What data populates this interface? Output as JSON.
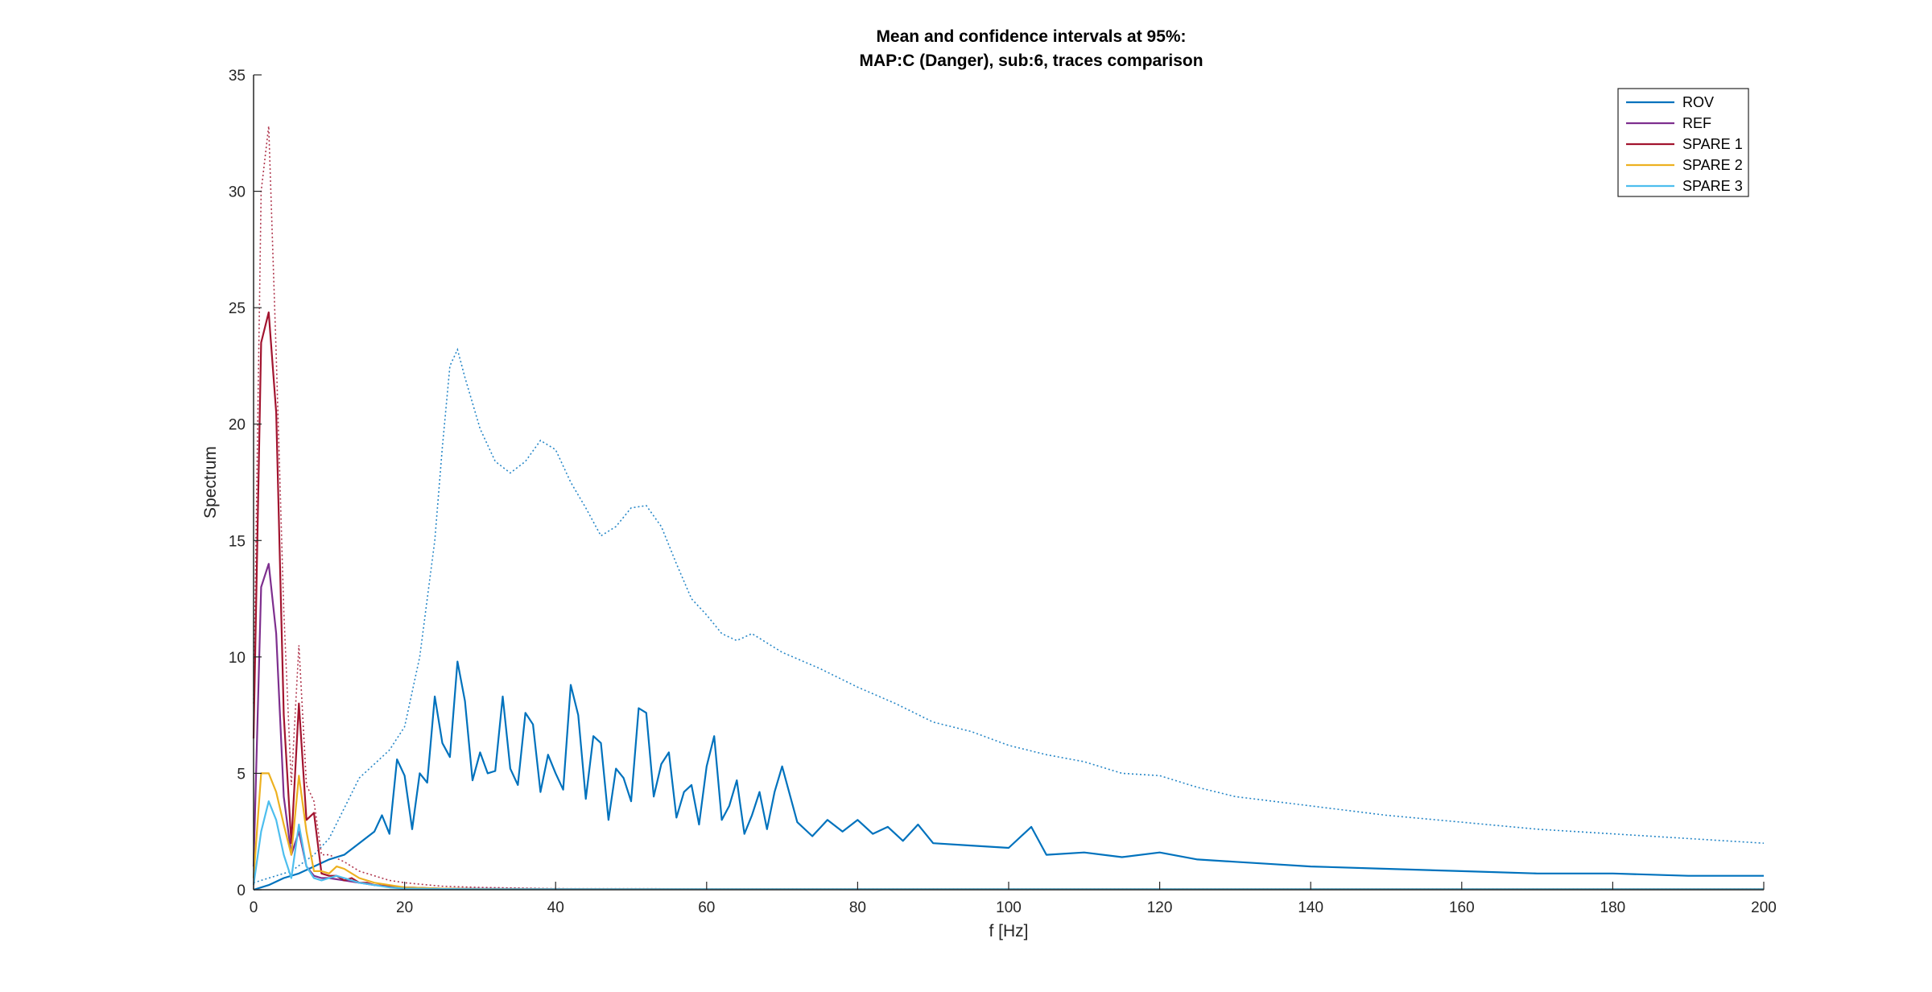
{
  "chart_data": {
    "type": "line",
    "title": [
      "Mean and confidence intervals at 95%:",
      "MAP:C (Danger), sub:6, traces comparison"
    ],
    "xlabel": "f [Hz]",
    "ylabel": "Spectrum",
    "xlim": [
      0,
      200
    ],
    "ylim": [
      0,
      35
    ],
    "xticks": [
      0,
      20,
      40,
      60,
      80,
      100,
      120,
      140,
      160,
      180,
      200
    ],
    "yticks": [
      0,
      5,
      10,
      15,
      20,
      25,
      30,
      35
    ],
    "xtick_labels": [
      "0",
      "20",
      "40",
      "60",
      "80",
      "100",
      "120",
      "140",
      "160",
      "180",
      "200"
    ],
    "ytick_labels": [
      "0",
      "5",
      "10",
      "15",
      "20",
      "25",
      "30",
      "35"
    ],
    "grid": false,
    "legend_position": "top-right",
    "series": [
      {
        "name": "ROV",
        "color": "#0072BD",
        "x": [
          0,
          2,
          4,
          6,
          8,
          10,
          12,
          14,
          16,
          17,
          18,
          19,
          20,
          21,
          22,
          23,
          24,
          25,
          26,
          27,
          28,
          29,
          30,
          31,
          32,
          33,
          34,
          35,
          36,
          37,
          38,
          39,
          40,
          41,
          42,
          43,
          44,
          45,
          46,
          47,
          48,
          49,
          50,
          51,
          52,
          53,
          54,
          55,
          56,
          57,
          58,
          59,
          60,
          61,
          62,
          63,
          64,
          65,
          66,
          67,
          68,
          69,
          70,
          72,
          74,
          76,
          78,
          80,
          82,
          84,
          86,
          88,
          90,
          95,
          100,
          103,
          105,
          110,
          115,
          120,
          125,
          130,
          135,
          140,
          150,
          160,
          170,
          180,
          190,
          200
        ],
        "y": [
          0,
          0.2,
          0.5,
          0.7,
          1.0,
          1.3,
          1.5,
          2.0,
          2.5,
          3.2,
          2.4,
          5.6,
          4.9,
          2.6,
          5.0,
          4.6,
          8.3,
          6.3,
          5.7,
          9.8,
          8.1,
          4.7,
          5.9,
          5.0,
          5.1,
          8.3,
          5.2,
          4.5,
          7.6,
          7.1,
          4.2,
          5.8,
          5.0,
          4.3,
          8.8,
          7.5,
          3.9,
          6.6,
          6.3,
          3.0,
          5.2,
          4.8,
          3.8,
          7.8,
          7.6,
          4.0,
          5.4,
          5.9,
          3.1,
          4.2,
          4.5,
          2.8,
          5.3,
          6.6,
          3.0,
          3.6,
          4.7,
          2.4,
          3.2,
          4.2,
          2.6,
          4.2,
          5.3,
          2.9,
          2.3,
          3.0,
          2.5,
          3.0,
          2.4,
          2.7,
          2.1,
          2.8,
          2.0,
          1.9,
          1.8,
          2.7,
          1.5,
          1.6,
          1.4,
          1.6,
          1.3,
          1.2,
          1.1,
          1.0,
          0.9,
          0.8,
          0.7,
          0.7,
          0.6,
          0.6
        ],
        "ci_upper": {
          "x": [
            0,
            5,
            8,
            10,
            12,
            14,
            16,
            18,
            20,
            22,
            24,
            25,
            26,
            27,
            28,
            30,
            32,
            34,
            36,
            38,
            40,
            42,
            44,
            46,
            48,
            50,
            52,
            54,
            56,
            58,
            60,
            62,
            64,
            66,
            68,
            70,
            75,
            80,
            85,
            90,
            95,
            100,
            105,
            110,
            115,
            120,
            125,
            130,
            140,
            150,
            160,
            170,
            180,
            190,
            200
          ],
          "y": [
            0.3,
            0.8,
            1.5,
            2.2,
            3.5,
            4.8,
            5.4,
            6.0,
            7.0,
            10.0,
            15.0,
            19.0,
            22.5,
            23.2,
            22.0,
            19.8,
            18.4,
            17.9,
            18.4,
            19.3,
            18.9,
            17.5,
            16.4,
            15.2,
            15.6,
            16.4,
            16.5,
            15.6,
            14.0,
            12.5,
            11.8,
            11.0,
            10.7,
            11.0,
            10.6,
            10.2,
            9.5,
            8.7,
            8.0,
            7.2,
            6.8,
            6.2,
            5.8,
            5.5,
            5.0,
            4.9,
            4.4,
            4.0,
            3.6,
            3.2,
            2.9,
            2.6,
            2.4,
            2.2,
            2.0
          ]
        }
      },
      {
        "name": "REF",
        "color": "#7E2F8E",
        "x": [
          0,
          1,
          2,
          3,
          4,
          5,
          6,
          7,
          8,
          9,
          10,
          12,
          14,
          16,
          18,
          20,
          25,
          30,
          40,
          50,
          60,
          80,
          100,
          150,
          200
        ],
        "y": [
          1.0,
          13.0,
          14.0,
          11.0,
          4.0,
          1.5,
          2.5,
          1.0,
          0.6,
          0.5,
          0.5,
          0.4,
          0.3,
          0.2,
          0.15,
          0.1,
          0.05,
          0.04,
          0.03,
          0.02,
          0.02,
          0.02,
          0.02,
          0.02,
          0.02
        ]
      },
      {
        "name": "SPARE 1",
        "color": "#A2142F",
        "x": [
          0,
          1,
          2,
          3,
          4,
          5,
          6,
          7,
          8,
          9,
          10,
          11,
          12,
          13,
          14,
          15,
          16,
          18,
          20,
          22,
          24,
          26,
          28,
          30,
          35,
          40,
          50,
          60,
          80,
          100,
          150,
          200
        ],
        "y": [
          6.5,
          23.5,
          24.8,
          20.5,
          7.5,
          2.0,
          8.0,
          3.0,
          3.3,
          0.7,
          0.6,
          0.6,
          0.4,
          0.5,
          0.3,
          0.3,
          0.2,
          0.15,
          0.1,
          0.08,
          0.05,
          0.04,
          0.03,
          0.02,
          0.02,
          0.02,
          0.02,
          0.02,
          0.02,
          0.02,
          0.02,
          0.02
        ],
        "ci_upper": {
          "x": [
            0,
            1,
            2,
            3,
            4,
            5,
            6,
            7,
            8,
            9,
            10,
            12,
            14,
            16,
            18,
            20,
            25,
            30,
            40,
            60,
            100,
            200
          ],
          "y": [
            8.0,
            30.0,
            32.8,
            23.0,
            12.0,
            4.5,
            10.5,
            4.5,
            3.8,
            1.5,
            1.5,
            1.2,
            0.8,
            0.6,
            0.4,
            0.3,
            0.15,
            0.1,
            0.05,
            0.04,
            0.04,
            0.04
          ]
        }
      },
      {
        "name": "SPARE 2",
        "color": "#EDB120",
        "x": [
          0,
          1,
          2,
          3,
          4,
          5,
          6,
          7,
          8,
          9,
          10,
          11,
          12,
          14,
          16,
          18,
          20,
          25,
          30,
          40,
          60,
          100,
          150,
          200
        ],
        "y": [
          0.5,
          5.0,
          5.0,
          4.2,
          2.8,
          1.5,
          4.9,
          2.5,
          0.8,
          0.8,
          0.7,
          1.0,
          0.9,
          0.5,
          0.3,
          0.2,
          0.1,
          0.05,
          0.03,
          0.02,
          0.02,
          0.02,
          0.02,
          0.02
        ]
      },
      {
        "name": "SPARE 3",
        "color": "#4DBEEE",
        "x": [
          0,
          1,
          2,
          3,
          4,
          5,
          6,
          7,
          8,
          9,
          10,
          11,
          12,
          14,
          16,
          18,
          20,
          25,
          30,
          40,
          60,
          100,
          150,
          200
        ],
        "y": [
          0.2,
          2.5,
          3.8,
          3.0,
          1.5,
          0.5,
          2.8,
          1.0,
          0.5,
          0.4,
          0.5,
          0.6,
          0.5,
          0.3,
          0.2,
          0.1,
          0.05,
          0.03,
          0.02,
          0.02,
          0.02,
          0.02,
          0.02,
          0.02
        ]
      }
    ]
  }
}
